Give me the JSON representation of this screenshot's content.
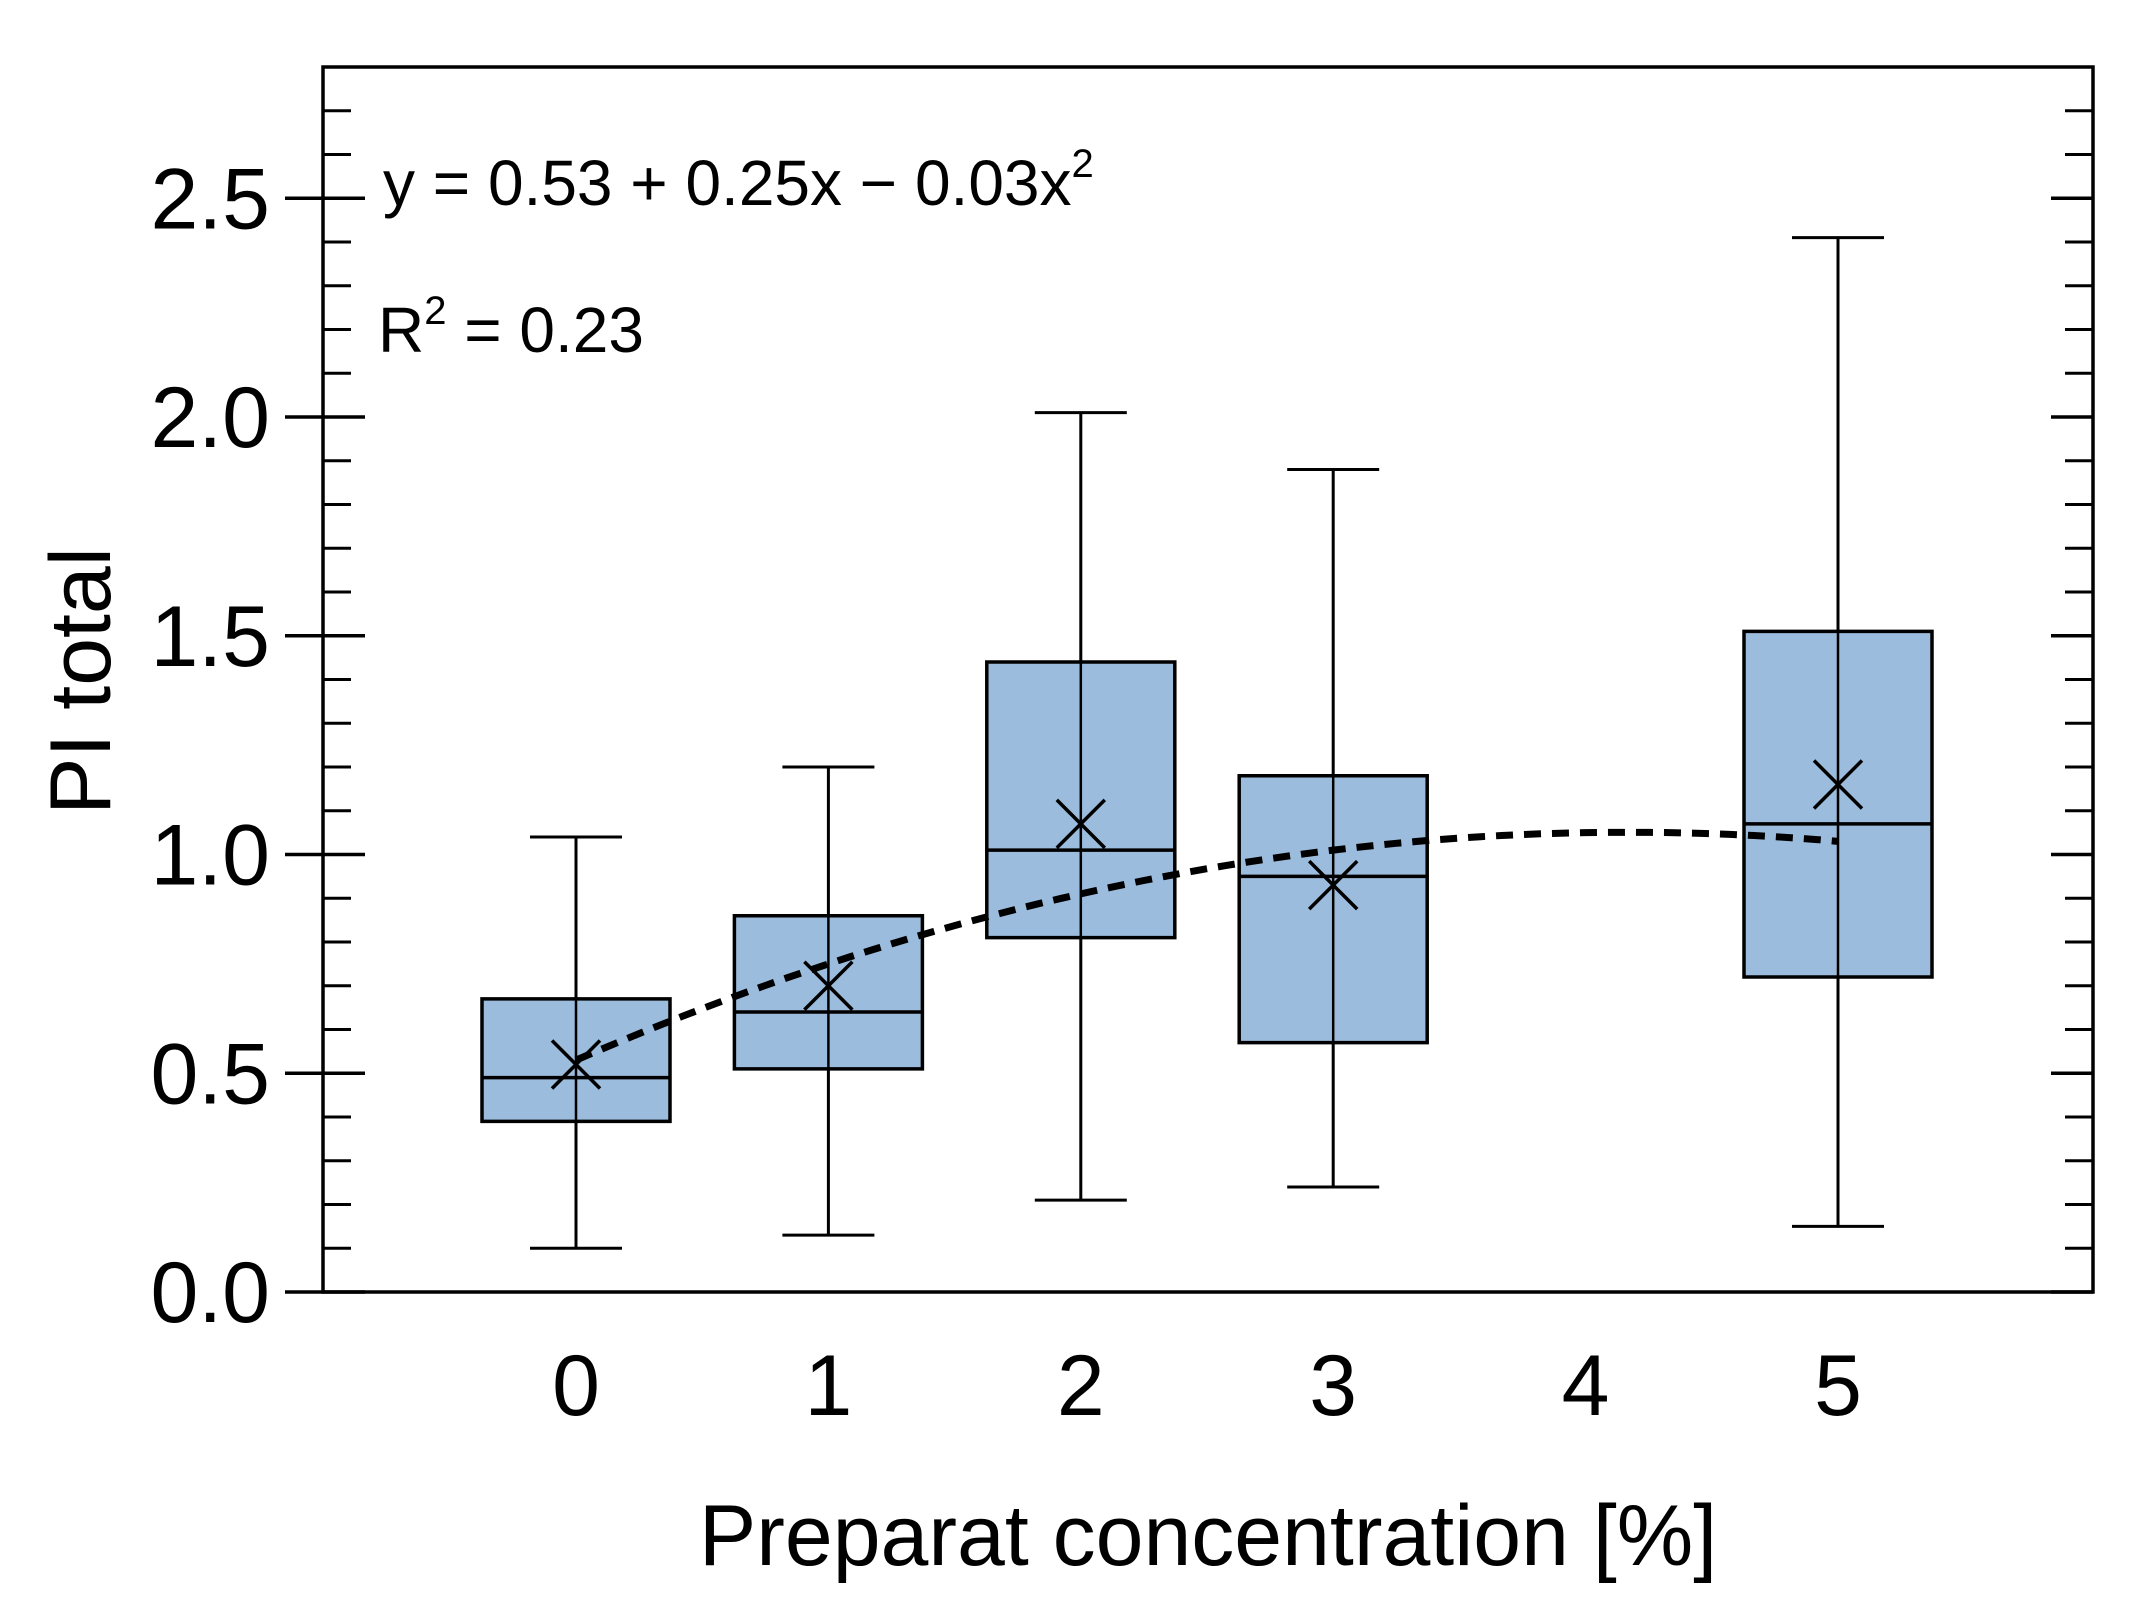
{
  "chart_data": {
    "type": "box",
    "title": "",
    "xlabel": "Preparat concentration [%]",
    "ylabel": "PI total",
    "xlim": [
      -1,
      6
    ],
    "ylim": [
      0,
      2.8
    ],
    "x_ticks": [
      0,
      1,
      2,
      3,
      4,
      5
    ],
    "x_tick_labels": [
      "0",
      "1",
      "2",
      "3",
      "4",
      "5"
    ],
    "y_ticks": [
      0.0,
      0.5,
      1.0,
      1.5,
      2.0,
      2.5
    ],
    "y_tick_labels": [
      "0.0",
      "0.5",
      "1.0",
      "1.5",
      "2.0",
      "2.5"
    ],
    "y_minor_step": 0.1,
    "grid": false,
    "box_color": "#9bbcdc",
    "box_edge_color": "#000000",
    "boxes": [
      {
        "x": 0,
        "whisker_low": 0.1,
        "q1": 0.39,
        "median": 0.49,
        "q3": 0.67,
        "whisker_high": 1.04,
        "mean": 0.52
      },
      {
        "x": 1,
        "whisker_low": 0.13,
        "q1": 0.51,
        "median": 0.64,
        "q3": 0.86,
        "whisker_high": 1.2,
        "mean": 0.7
      },
      {
        "x": 2,
        "whisker_low": 0.21,
        "q1": 0.81,
        "median": 1.01,
        "q3": 1.44,
        "whisker_high": 2.01,
        "mean": 1.07
      },
      {
        "x": 3,
        "whisker_low": 0.24,
        "q1": 0.57,
        "median": 0.95,
        "q3": 1.18,
        "whisker_high": 1.88,
        "mean": 0.93
      },
      {
        "x": 5,
        "whisker_low": 0.15,
        "q1": 0.72,
        "median": 1.07,
        "q3": 1.51,
        "whisker_high": 2.41,
        "mean": 1.16
      }
    ],
    "fit": {
      "model": "quadratic",
      "intercept": 0.53,
      "linear": 0.25,
      "quadratic": -0.03,
      "x_range": [
        0,
        5
      ],
      "style": "dashed"
    },
    "annotations": {
      "equation_main": "y = 0.53 + 0.25x − 0.03x",
      "equation_sup": "2",
      "r2_prefix": "R",
      "r2_sup": "2",
      "r2_rest": " = 0.23"
    }
  }
}
